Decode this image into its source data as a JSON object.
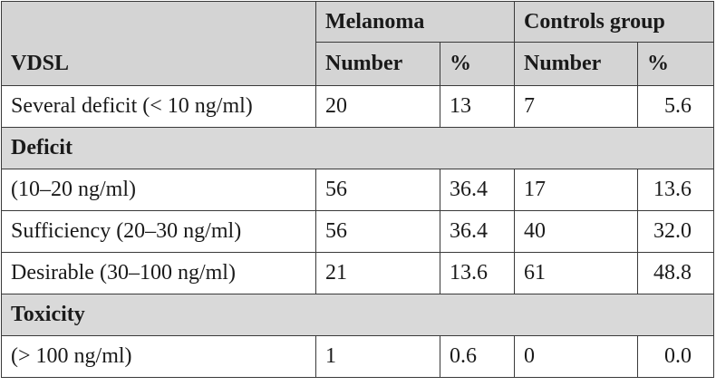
{
  "header": {
    "row_label": "VDSL",
    "groups": [
      "Melanoma",
      "Controls group"
    ],
    "subcols": [
      "Number",
      "%",
      "Number",
      "%"
    ]
  },
  "rows": [
    {
      "type": "data",
      "label": "Several deficit (< 10 ng/ml)",
      "values": [
        "20",
        "13",
        "7",
        "5.6"
      ]
    },
    {
      "type": "section",
      "label": "Deficit"
    },
    {
      "type": "data",
      "label": "(10–20 ng/ml)",
      "values": [
        "56",
        "36.4",
        "17",
        "13.6"
      ]
    },
    {
      "type": "data",
      "label": "Sufficiency (20–30 ng/ml)",
      "values": [
        "56",
        "36.4",
        "40",
        "32.0"
      ]
    },
    {
      "type": "data",
      "label": "Desirable (30–100 ng/ml)",
      "values": [
        "21",
        "13.6",
        "61",
        "48.8"
      ]
    },
    {
      "type": "section",
      "label": "Toxicity"
    },
    {
      "type": "data",
      "label": "(> 100 ng/ml)",
      "values": [
        "1",
        "0.6",
        "0",
        "0.0"
      ]
    }
  ]
}
